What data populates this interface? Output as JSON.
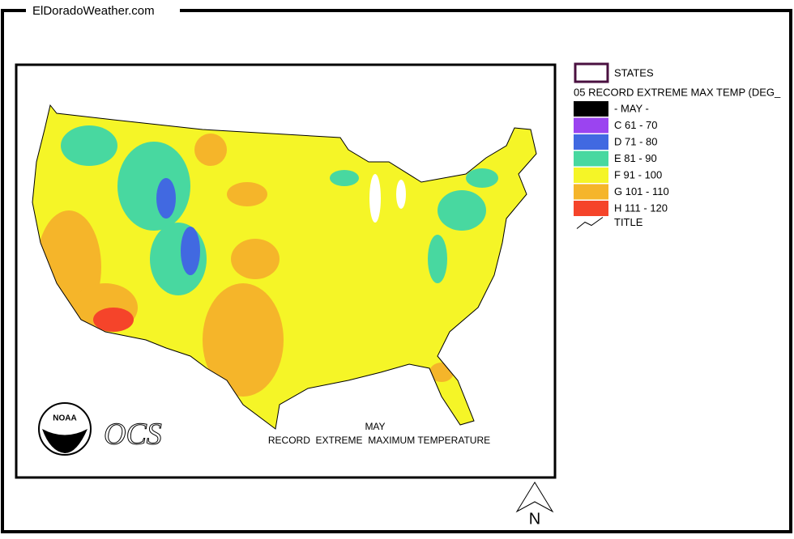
{
  "header": {
    "site": "ElDoradoWeather.com"
  },
  "map": {
    "month": "MAY",
    "caption": "RECORD  EXTREME  MAXIMUM TEMPERATURE",
    "logo": "NOAA",
    "credit": "OCS",
    "north": "N"
  },
  "legend": {
    "boundary": "STATES",
    "boundary_color": "#4a1040",
    "layer": "05 RECORD EXTREME MAX TEMP (DEG_",
    "classes": [
      {
        "label": "- MAY -",
        "color": "#000000"
      },
      {
        "label": "C 61 - 70",
        "color": "#9b44f0"
      },
      {
        "label": "D 71 - 80",
        "color": "#4169e1"
      },
      {
        "label": "E 81 - 90",
        "color": "#48d8a0"
      },
      {
        "label": "F 91 - 100",
        "color": "#f5f527"
      },
      {
        "label": "G 101 - 110",
        "color": "#f5b52a"
      },
      {
        "label": "H 111 - 120",
        "color": "#f5442a"
      }
    ],
    "line": "TITLE"
  }
}
